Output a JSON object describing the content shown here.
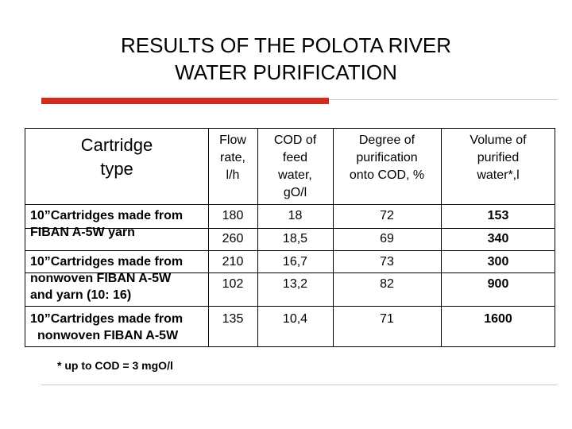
{
  "title": {
    "line1": "RESULTS OF THE POLOTA RIVER",
    "line2": "WATER PURIFICATION"
  },
  "table": {
    "headers": {
      "cartridge_line1": "Cartridge",
      "cartridge_line2": "type",
      "flow_line1": "Flow",
      "flow_line2": "rate,",
      "flow_line3": "l/h",
      "cod_line1": "COD of",
      "cod_line2": "feed",
      "cod_line3": "water,",
      "cod_line4": "gO/l",
      "degree_line1": "Degree of",
      "degree_line2": "purification",
      "degree_line3": "onto COD, %",
      "volume_line1": "Volume of",
      "volume_line2": "purified",
      "volume_line3": "water*,l"
    },
    "groups": [
      {
        "label_lines": [
          "10”Cartridges made from",
          "FIBAN A-5W yarn"
        ],
        "rows": [
          {
            "flow": "180",
            "cod": "18",
            "degree": "72",
            "volume": "153"
          },
          {
            "flow": "260",
            "cod": "18,5",
            "degree": "69",
            "volume": "340"
          }
        ]
      },
      {
        "label_lines": [
          "10”Cartridges made from",
          "nonwoven FIBAN A-5W",
          "and yarn (10: 16)"
        ],
        "rows": [
          {
            "flow": "210",
            "cod": "16,7",
            "degree": "73",
            "volume": "300"
          },
          {
            "flow": "102",
            "cod": "13,2",
            "degree": "82",
            "volume": "900"
          }
        ]
      },
      {
        "label_lines": [
          "10”Cartridges made from",
          "nonwoven FIBAN A-5W"
        ],
        "rows": [
          {
            "flow": "135",
            "cod": "10,4",
            "degree": "71",
            "volume": "1600"
          }
        ]
      }
    ]
  },
  "footnote": "* up to COD = 3 mgO/l",
  "colors": {
    "accent_bar": "#d52b1e",
    "thin_rule": "#c8c8c8",
    "text": "#000000",
    "background": "#ffffff"
  }
}
